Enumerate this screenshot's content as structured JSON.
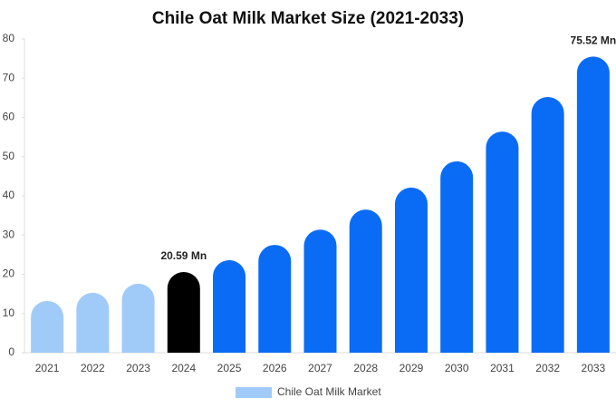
{
  "chart_data": {
    "type": "bar",
    "title": "Chile Oat Milk Market Size (2021-2033)",
    "categories": [
      "2021",
      "2022",
      "2023",
      "2024",
      "2025",
      "2026",
      "2027",
      "2028",
      "2029",
      "2030",
      "2031",
      "2032",
      "2033"
    ],
    "series": [
      {
        "name": "Chile Oat Milk Market",
        "color": "#a0cbf8",
        "colors": [
          "#a0cbf8",
          "#a0cbf8",
          "#a0cbf8",
          "#000000",
          "#0a6cf5",
          "#0a6cf5",
          "#0a6cf5",
          "#0a6cf5",
          "#0a6cf5",
          "#0a6cf5",
          "#0a6cf5",
          "#0a6cf5",
          "#0a6cf5"
        ],
        "values": [
          13.2,
          15.3,
          17.6,
          20.59,
          23.6,
          27.5,
          31.4,
          36.5,
          42.1,
          48.8,
          56.4,
          65.2,
          75.52
        ],
        "value_labels": [
          null,
          null,
          null,
          "20.59 Mn",
          null,
          null,
          null,
          null,
          null,
          null,
          null,
          null,
          "75.52 Mn"
        ]
      }
    ],
    "ylim": [
      0,
      80
    ],
    "yticks": [
      0,
      10,
      20,
      30,
      40,
      50,
      60,
      70,
      80
    ],
    "legend": "bottom"
  }
}
